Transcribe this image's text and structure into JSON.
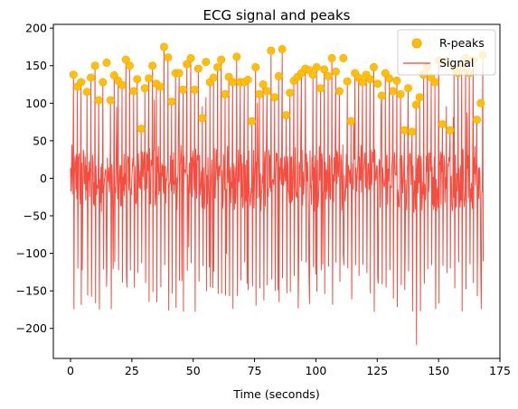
{
  "chart_data": {
    "type": "line",
    "title": "ECG signal and peaks",
    "xlabel": "Time (seconds)",
    "ylabel": "",
    "xlim": [
      -7,
      175
    ],
    "ylim": [
      -240,
      205
    ],
    "xticks": [
      0,
      25,
      50,
      75,
      100,
      125,
      150,
      175
    ],
    "yticks": [
      -200,
      -150,
      -100,
      -50,
      0,
      50,
      100,
      150,
      200
    ],
    "grid": false,
    "legend_position": "top-right",
    "colors": {
      "signal": "#f44336",
      "peaks": "#ffc107",
      "peak_edge": "#ffa000"
    },
    "series": [
      {
        "name": "R-peaks",
        "type": "scatter",
        "x": [
          1.2,
          2.8,
          4.3,
          6.7,
          8.3,
          10.0,
          11.5,
          13.2,
          14.7,
          16.3,
          17.8,
          19.4,
          21.0,
          22.6,
          24.1,
          25.7,
          27.2,
          28.8,
          30.3,
          31.9,
          33.4,
          35.0,
          36.6,
          38.1,
          39.7,
          41.2,
          42.8,
          44.3,
          45.9,
          47.4,
          49.0,
          50.6,
          52.1,
          53.7,
          55.2,
          56.8,
          58.3,
          59.9,
          61.4,
          63.0,
          64.5,
          66.1,
          67.7,
          69.2,
          70.8,
          72.3,
          73.9,
          75.4,
          77.0,
          78.5,
          80.1,
          81.7,
          83.2,
          84.8,
          86.3,
          87.9,
          89.4,
          91.0,
          92.5,
          94.1,
          95.7,
          97.2,
          98.8,
          100.3,
          101.9,
          103.4,
          105.0,
          106.5,
          108.1,
          109.6,
          111.2,
          112.8,
          114.3,
          115.9,
          117.4,
          119.0,
          120.5,
          122.1,
          123.6,
          125.2,
          126.8,
          128.3,
          129.9,
          131.4,
          133.0,
          134.5,
          136.1,
          137.6,
          139.2,
          140.8,
          142.3,
          143.9,
          145.4,
          147.0,
          148.5,
          150.1,
          151.6,
          153.2,
          154.7,
          156.3,
          157.9,
          159.4,
          161.0,
          162.5,
          164.1,
          165.6,
          167.2,
          168.0
        ],
        "values": [
          138,
          122,
          128,
          115,
          134,
          150,
          104,
          128,
          154,
          104,
          137,
          130,
          124,
          158,
          150,
          116,
          132,
          66,
          120,
          133,
          150,
          126,
          122,
          175,
          161,
          102,
          140,
          140,
          118,
          152,
          160,
          118,
          146,
          80,
          155,
          128,
          134,
          148,
          158,
          112,
          135,
          128,
          162,
          128,
          128,
          131,
          76,
          148,
          112,
          125,
          116,
          170,
          108,
          136,
          172,
          84,
          114,
          130,
          135,
          140,
          146,
          144,
          138,
          148,
          120,
          145,
          136,
          160,
          142,
          116,
          160,
          129,
          76,
          140,
          134,
          128,
          138,
          132,
          148,
          126,
          110,
          140,
          133,
          116,
          130,
          112,
          64,
          120,
          62,
          98,
          108,
          138,
          149,
          134,
          128,
          157,
          72,
          156,
          64,
          146,
          140,
          148,
          160,
          140,
          158,
          78,
          100,
          164
        ]
      },
      {
        "name": "Signal",
        "type": "line",
        "sample_step": 0.2,
        "x_start": 0,
        "x_end": 168.3,
        "approx_range": [
          -222,
          177
        ]
      }
    ]
  }
}
